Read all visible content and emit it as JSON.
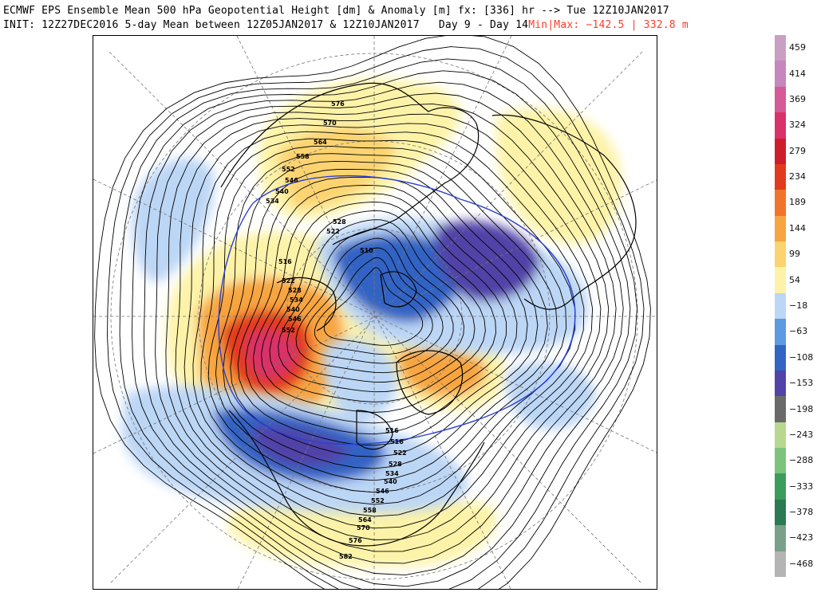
{
  "header": {
    "line1": "ECMWF EPS Ensemble Mean 500 hPa Geopotential Height [dm] & Anomaly [m] fx: [336] hr --> Tue 12Z10JAN2017",
    "line2_left": "INIT: 12Z27DEC2016 5-day Mean between 12Z05JAN2017 & 12Z10JAN2017   Day 9 - Day 14",
    "line2_right": "Min|Max: −142.5 | 332.8 m"
  },
  "colors": {
    "minmax_text": "#ff3c2a",
    "contour": "#000000",
    "contour_540": "#2a3fd6",
    "coast": "#000000",
    "gridline": "#777777"
  },
  "colorbar": {
    "ticks": [
      {
        "label": "459",
        "color": "#c9a0c4"
      },
      {
        "label": "414",
        "color": "#c587bd"
      },
      {
        "label": "369",
        "color": "#d45a98"
      },
      {
        "label": "324",
        "color": "#d83268"
      },
      {
        "label": "279",
        "color": "#cf1c2c"
      },
      {
        "label": "234",
        "color": "#e23a1e"
      },
      {
        "label": "189",
        "color": "#f0752a"
      },
      {
        "label": "144",
        "color": "#f7a540"
      },
      {
        "label": "99",
        "color": "#fbd370"
      },
      {
        "label": "54",
        "color": "#fdf3a8"
      },
      {
        "label": "−18",
        "color": "#bcd6f5"
      },
      {
        "label": "−63",
        "color": "#5d9ae2"
      },
      {
        "label": "−108",
        "color": "#3264c4"
      },
      {
        "label": "−153",
        "color": "#5143a8"
      },
      {
        "label": "−198",
        "color": "#6a6a6a"
      },
      {
        "label": "−243",
        "color": "#b8d890"
      },
      {
        "label": "−288",
        "color": "#7cc47e"
      },
      {
        "label": "−333",
        "color": "#3c9c5c"
      },
      {
        "label": "−378",
        "color": "#2b7a52"
      },
      {
        "label": "−423",
        "color": "#7aa08a"
      },
      {
        "label": "−468",
        "color": "#b4b4b4"
      }
    ]
  },
  "map": {
    "contour_labels": [
      "576",
      "570",
      "564",
      "558",
      "552",
      "546",
      "540",
      "534",
      "528",
      "522",
      "516",
      "510",
      "522",
      "528",
      "534",
      "540",
      "546",
      "552",
      "516",
      "516",
      "522",
      "528",
      "534",
      "540",
      "546",
      "552",
      "558",
      "564",
      "570",
      "576",
      "582"
    ],
    "anomalies": [
      {
        "name": "aleutian-ridge",
        "value_class": "324"
      },
      {
        "name": "western-atlantic-ridge",
        "value_class": "189"
      },
      {
        "name": "siberia-ridge",
        "value_class": "54"
      },
      {
        "name": "europe-ridge",
        "value_class": "54"
      },
      {
        "name": "gulf-mexico-ridge",
        "value_class": "54"
      },
      {
        "name": "north-america-trough",
        "value_class": "-108"
      },
      {
        "name": "arctic-trough",
        "value_class": "-108"
      },
      {
        "name": "scandinavia-trough",
        "value_class": "-153"
      }
    ]
  }
}
